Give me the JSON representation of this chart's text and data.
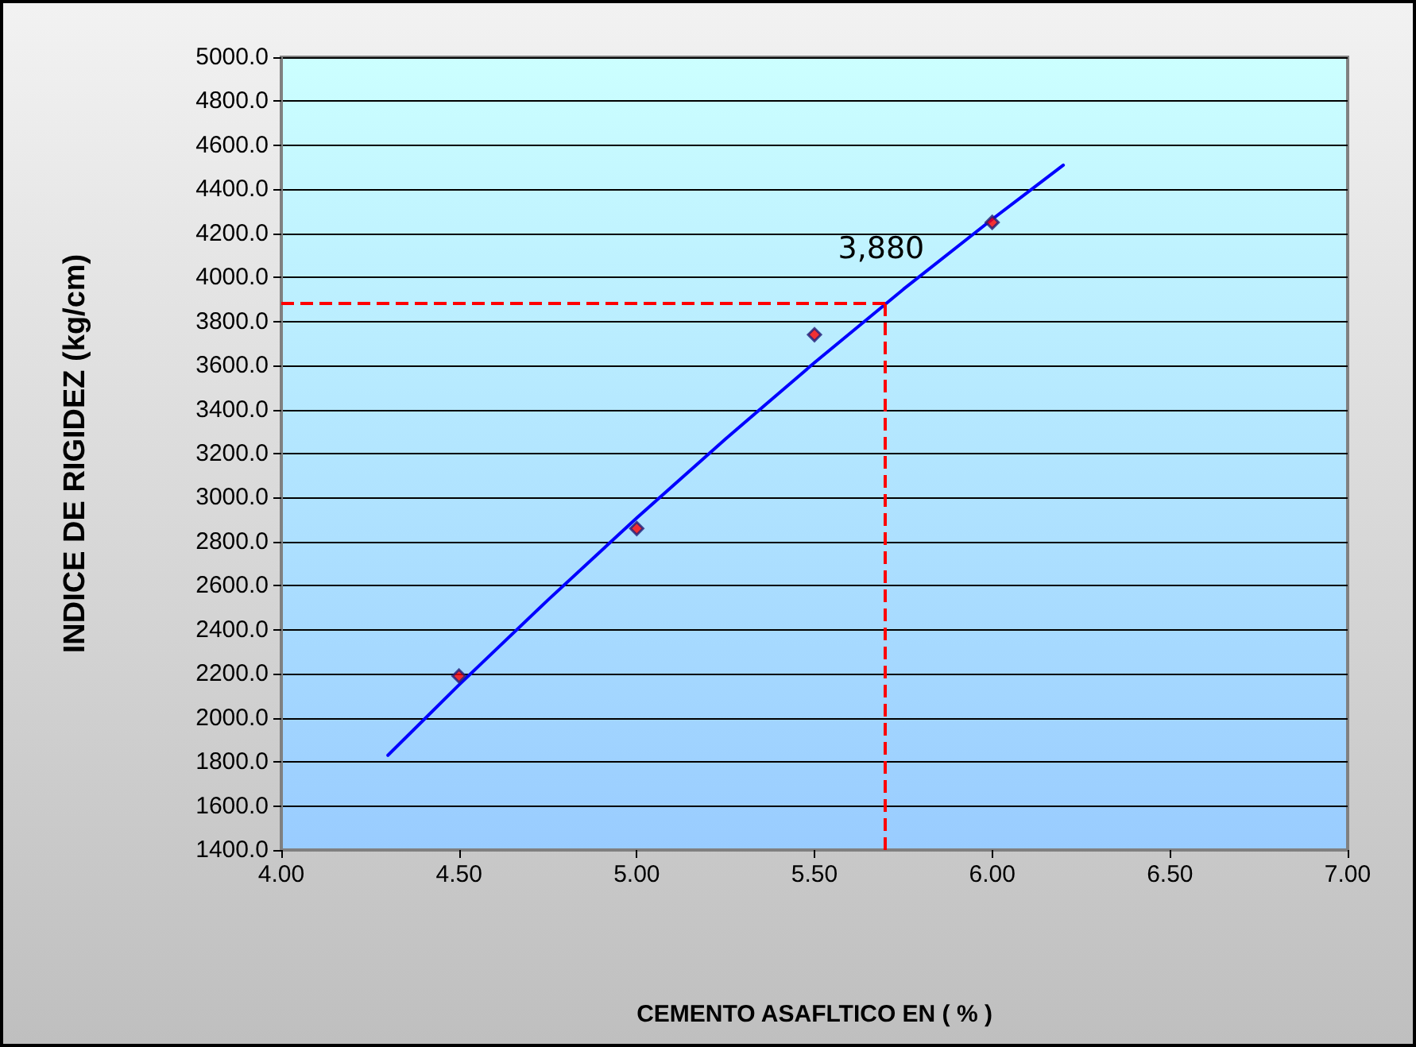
{
  "chart_data": {
    "type": "scatter",
    "xlabel": "CEMENTO ASAFLTICO EN ( % )",
    "ylabel": "INDICE DE RIGIDEZ (kg/cm)",
    "x": [
      4.5,
      5.0,
      5.5,
      6.0
    ],
    "series": [
      {
        "color": "#ff0000",
        "marker": "diamond",
        "values": [
          2190,
          2860,
          3740,
          4250
        ]
      },
      {
        "type": "line",
        "marker": "none",
        "color": "#0000ff",
        "x": [
          4.3,
          4.5,
          4.75,
          5.0,
          5.25,
          5.5,
          5.75,
          6.0,
          6.2
        ],
        "values": [
          1830,
          2150,
          2535,
          2908,
          3267,
          3613,
          3946,
          4264,
          4510
        ]
      }
    ],
    "xlim": [
      4.0,
      7.0
    ],
    "xticks": [
      {
        "value": 4,
        "label": "4.00"
      },
      {
        "value": 4.5,
        "label": "4.50"
      },
      {
        "value": 5,
        "label": "5.00"
      },
      {
        "value": 5.5,
        "label": "5.50"
      },
      {
        "value": 6,
        "label": "6.00"
      },
      {
        "value": 6.5,
        "label": "6.50"
      },
      {
        "value": 7,
        "label": "7.00"
      }
    ],
    "ylim": [
      1400,
      5000
    ],
    "yticks": [
      {
        "value": 1400,
        "label": "1400.0"
      },
      {
        "value": 1600,
        "label": "1600.0"
      },
      {
        "value": 1800,
        "label": "1800.0"
      },
      {
        "value": 2000,
        "label": "2000.0"
      },
      {
        "value": 2200,
        "label": "2200.0"
      },
      {
        "value": 2400,
        "label": "2400.0"
      },
      {
        "value": 2600,
        "label": "2600.0"
      },
      {
        "value": 2800,
        "label": "2800.0"
      },
      {
        "value": 3000,
        "label": "3000.0"
      },
      {
        "value": 3200,
        "label": "3200.0"
      },
      {
        "value": 3400,
        "label": "3400.0"
      },
      {
        "value": 3600,
        "label": "3600.0"
      },
      {
        "value": 3800,
        "label": "3800.0"
      },
      {
        "value": 4000,
        "label": "4000.0"
      },
      {
        "value": 4200,
        "label": "4200.0"
      },
      {
        "value": 4400,
        "label": "4400.0"
      },
      {
        "value": 4600,
        "label": "4600.0"
      },
      {
        "value": 4800,
        "label": "4800.0"
      },
      {
        "value": 5000,
        "label": "5000.0"
      }
    ],
    "ref_lines": [
      {
        "axis": "x",
        "value": 5.7,
        "color": "#ff0000",
        "line_style": "dashed"
      },
      {
        "axis": "y",
        "value": 3880,
        "color": "#ff0000",
        "line_style": "dashed"
      }
    ],
    "annotations": [
      {
        "text": "3,880",
        "x": 5.7,
        "y": 3880
      }
    ],
    "grid": "y"
  }
}
